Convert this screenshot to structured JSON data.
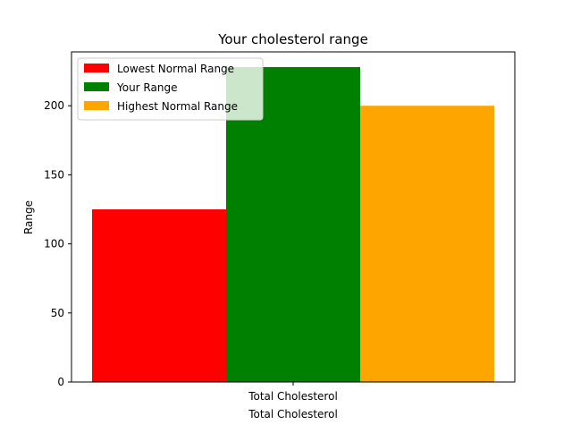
{
  "chart_data": {
    "type": "bar",
    "title": "Your cholesterol range",
    "xlabel": "Total Cholesterol",
    "ylabel": "Range",
    "categories": [
      "Total Cholesterol"
    ],
    "series": [
      {
        "name": "Lowest Normal Range",
        "values": [
          125
        ],
        "color": "#ff0000"
      },
      {
        "name": "Your Range",
        "values": [
          228
        ],
        "color": "#008000"
      },
      {
        "name": "Highest Normal Range",
        "values": [
          200
        ],
        "color": "#ffa500"
      }
    ],
    "ylim": [
      0,
      239
    ],
    "yticks": [
      0,
      50,
      100,
      150,
      200
    ],
    "grid": false,
    "legend_position": "top-left"
  }
}
